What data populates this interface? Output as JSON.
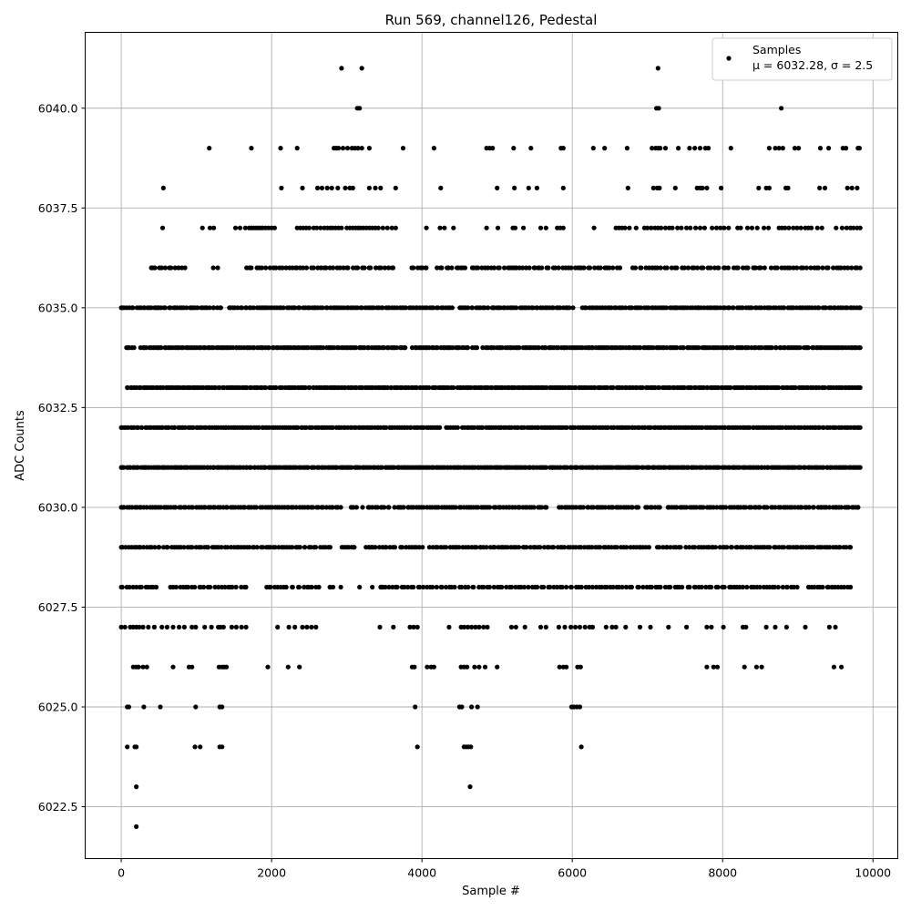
{
  "chart_data": {
    "type": "scatter",
    "title": "Run 569, channel126, Pedestal",
    "xlabel": "Sample #",
    "ylabel": "ADC Counts",
    "xlim": [
      -480,
      10330
    ],
    "ylim": [
      6021.2,
      6041.9
    ],
    "x_ticks": [
      0,
      2000,
      4000,
      6000,
      8000,
      10000
    ],
    "x_tick_labels": [
      "0",
      "2000",
      "4000",
      "6000",
      "8000",
      "10000"
    ],
    "y_ticks": [
      6022.5,
      6025.0,
      6027.5,
      6030.0,
      6032.5,
      6035.0,
      6037.5,
      6040.0
    ],
    "y_tick_labels": [
      "6022.5",
      "6025.0",
      "6027.5",
      "6030.0",
      "6032.5",
      "6035.0",
      "6037.5",
      "6040.0"
    ],
    "grid": true,
    "legend_position": "top-right",
    "marker_color": "#000000",
    "series": [
      {
        "name": "Samples",
        "legend_stats": "μ = 6032.28, σ = 2.5",
        "bands": [
          {
            "y": 6022,
            "x": [
              200
            ]
          },
          {
            "y": 6023,
            "x": [
              200,
              4640
            ]
          },
          {
            "y": 6024,
            "x": [
              80,
              180,
              200,
              980,
              1050,
              1310,
              1340,
              3940,
              4560,
              4590,
              4620,
              4650,
              6120
            ]
          },
          {
            "y": 6025,
            "x": [
              80,
              100,
              300,
              520,
              990,
              1310,
              1340,
              3910,
              4500,
              4530,
              4660,
              4740,
              5990,
              6020,
              6060,
              6100
            ]
          },
          {
            "y": 6026,
            "x": [
              160,
              200,
              230,
              290,
              340,
              690,
              900,
              940,
              1300,
              1340,
              1370,
              1400,
              1950,
              2220,
              2370,
              3870,
              3900,
              4070,
              4120,
              4160,
              4520,
              4560,
              4600,
              4700,
              4760,
              4840,
              5000,
              5830,
              5880,
              5920,
              6070,
              6110,
              7790,
              7880,
              7930,
              8290,
              8450,
              8520,
              9480,
              9580
            ]
          },
          {
            "y": 6027,
            "x": [
              0,
              50,
              120,
              160,
              200,
              240,
              290,
              360,
              440,
              540,
              610,
              690,
              770,
              840,
              940,
              990,
              1110,
              1200,
              1290,
              1320,
              1360,
              1470,
              1530,
              1600,
              1660,
              2080,
              2230,
              2310,
              2410,
              2470,
              2530,
              2590,
              3440,
              3620,
              3840,
              3890,
              3940,
              4360,
              4520,
              4560,
              4610,
              4660,
              4710,
              4760,
              4820,
              4870,
              5190,
              5250,
              5370,
              5580,
              5650,
              5820,
              5900,
              5980,
              6040,
              6100,
              6170,
              6230,
              6270,
              6450,
              6530,
              6580,
              6710,
              6900,
              7040,
              7280,
              7520,
              7790,
              7850,
              8010,
              8270,
              8310,
              8580,
              8700,
              8850,
              9100,
              9420,
              9500
            ]
          },
          {
            "y": 6028,
            "range": [
              0,
              9700
            ],
            "n": 230,
            "gaps": [
              [
                520,
                650
              ],
              [
                1660,
                1930
              ],
              [
                2660,
                2760
              ],
              [
                2850,
                3430
              ],
              [
                7440,
                7560
              ],
              [
                8720,
                8830
              ],
              [
                9030,
                9140
              ]
            ],
            "extra_x": [
              2780,
              2920,
              3170,
              3340,
              3480,
              7460,
              7540,
              8740,
              8800,
              9150,
              9460,
              9700
            ]
          },
          {
            "y": 6029,
            "range": [
              0,
              9700
            ],
            "n": 270,
            "gaps": [
              [
                2780,
                2900
              ],
              [
                3110,
                3250
              ],
              [
                3620,
                3700
              ],
              [
                4030,
                4110
              ],
              [
                6630,
                6680
              ],
              [
                7010,
                7130
              ],
              [
                7450,
                7500
              ]
            ],
            "extra_x": [
              3100,
              3300,
              3640,
              4100,
              6650,
              7020
            ]
          },
          {
            "y": 6030,
            "range": [
              0,
              9800
            ],
            "n": 300,
            "gaps": [
              [
                2890,
                3010
              ],
              [
                3140,
                3260
              ],
              [
                3570,
                3620
              ],
              [
                5690,
                5800
              ],
              [
                6890,
                6960
              ],
              [
                7190,
                7240
              ]
            ],
            "extra_x": [
              2920,
              3060,
              3210,
              3560,
              9800
            ]
          },
          {
            "y": 6031,
            "range": [
              0,
              9830
            ],
            "n": 360,
            "gaps": []
          },
          {
            "y": 6032,
            "range": [
              0,
              9830
            ],
            "n": 360,
            "gaps": [
              [
                4260,
                4310
              ],
              [
                4490,
                4530
              ]
            ]
          },
          {
            "y": 6033,
            "range": [
              80,
              9830
            ],
            "n": 350,
            "gaps": [
              [
                4420,
                4460
              ],
              [
                4930,
                4970
              ]
            ]
          },
          {
            "y": 6034,
            "range": [
              70,
              9830
            ],
            "n": 340,
            "gaps": [
              [
                190,
                250
              ],
              [
                3790,
                3850
              ],
              [
                4630,
                4670
              ],
              [
                4760,
                4800
              ]
            ]
          },
          {
            "y": 6035,
            "range": [
              0,
              9830
            ],
            "n": 320,
            "gaps": [
              [
                600,
                630
              ],
              [
                1330,
                1390
              ],
              [
                4410,
                4480
              ],
              [
                4880,
                4920
              ],
              [
                6040,
                6090
              ]
            ],
            "extra_x": [
              460,
              4950,
              7390
            ]
          },
          {
            "y": 6036,
            "range": [
              400,
              9830
            ],
            "n": 220,
            "gaps": [
              [
                860,
                1180
              ],
              [
                1300,
                1660
              ],
              [
                3640,
                3820
              ],
              [
                4100,
                4180
              ],
              [
                4580,
                4660
              ],
              [
                6640,
                6790
              ],
              [
                8570,
                8620
              ]
            ],
            "extra_x": [
              4050,
              4350,
              4540,
              4720,
              5200,
              5560,
              6120,
              8440
            ]
          },
          {
            "y": 6037,
            "x": [
              550,
              1080,
              1180,
              1230,
              1520,
              1580,
              1650,
              1700,
              1730,
              1760,
              1790,
              1820,
              1850,
              1880,
              1920,
              1960,
              2000,
              2040,
              2340,
              2380,
              2420,
              2460,
              2500,
              2560,
              2600,
              2650,
              2700,
              2740,
              2780,
              2810,
              2850,
              2890,
              2930,
              3000,
              3040,
              3080,
              3120,
              3150,
              3180,
              3220,
              3260,
              3300,
              3340,
              3380,
              3420,
              3480,
              3540,
              3600,
              3650,
              4060,
              4240,
              4300,
              4420,
              4860,
              5010,
              5210,
              5240,
              5350,
              5580,
              5650,
              5800,
              5840,
              5880,
              6290,
              6580,
              6620,
              6660,
              6700,
              6760,
              6850,
              6960,
              7000,
              7050,
              7100,
              7140,
              7180,
              7240,
              7290,
              7330,
              7400,
              7450,
              7520,
              7570,
              7640,
              7700,
              7760,
              7860,
              7920,
              7970,
              8020,
              8080,
              8200,
              8240,
              8330,
              8390,
              8460,
              8550,
              8610,
              8750,
              8790,
              8830,
              8880,
              8940,
              8990,
              9040,
              9100,
              9140,
              9180,
              9260,
              9320,
              9510,
              9590,
              9650,
              9700,
              9740,
              9790,
              9830
            ]
          },
          {
            "y": 6038,
            "x": [
              560,
              2130,
              2410,
              2610,
              2670,
              2740,
              2800,
              2880,
              2980,
              3040,
              3080,
              3300,
              3380,
              3450,
              3650,
              4250,
              5000,
              5230,
              5420,
              5530,
              5880,
              6740,
              7080,
              7130,
              7160,
              7370,
              7660,
              7700,
              7730,
              7790,
              7980,
              8480,
              8580,
              8620,
              8840,
              8870,
              9290,
              9360,
              9660,
              9720,
              9790
            ]
          },
          {
            "y": 6039,
            "x": [
              1170,
              1730,
              2120,
              2340,
              2830,
              2860,
              2890,
              2950,
              3010,
              3070,
              3110,
              3150,
              3200,
              3300,
              3750,
              4160,
              4860,
              4900,
              4940,
              5220,
              5450,
              5850,
              5880,
              6280,
              6430,
              6730,
              7060,
              7110,
              7140,
              7170,
              7240,
              7410,
              7560,
              7630,
              7700,
              7770,
              7810,
              8110,
              8620,
              8700,
              8750,
              8800,
              8960,
              9010,
              9300,
              9410,
              9600,
              9640,
              9800,
              9820
            ]
          },
          {
            "y": 6040,
            "x": [
              3140,
              3170,
              7120,
              7150,
              8780
            ]
          },
          {
            "y": 6041,
            "x": [
              2930,
              3200,
              7140
            ]
          }
        ]
      }
    ]
  }
}
